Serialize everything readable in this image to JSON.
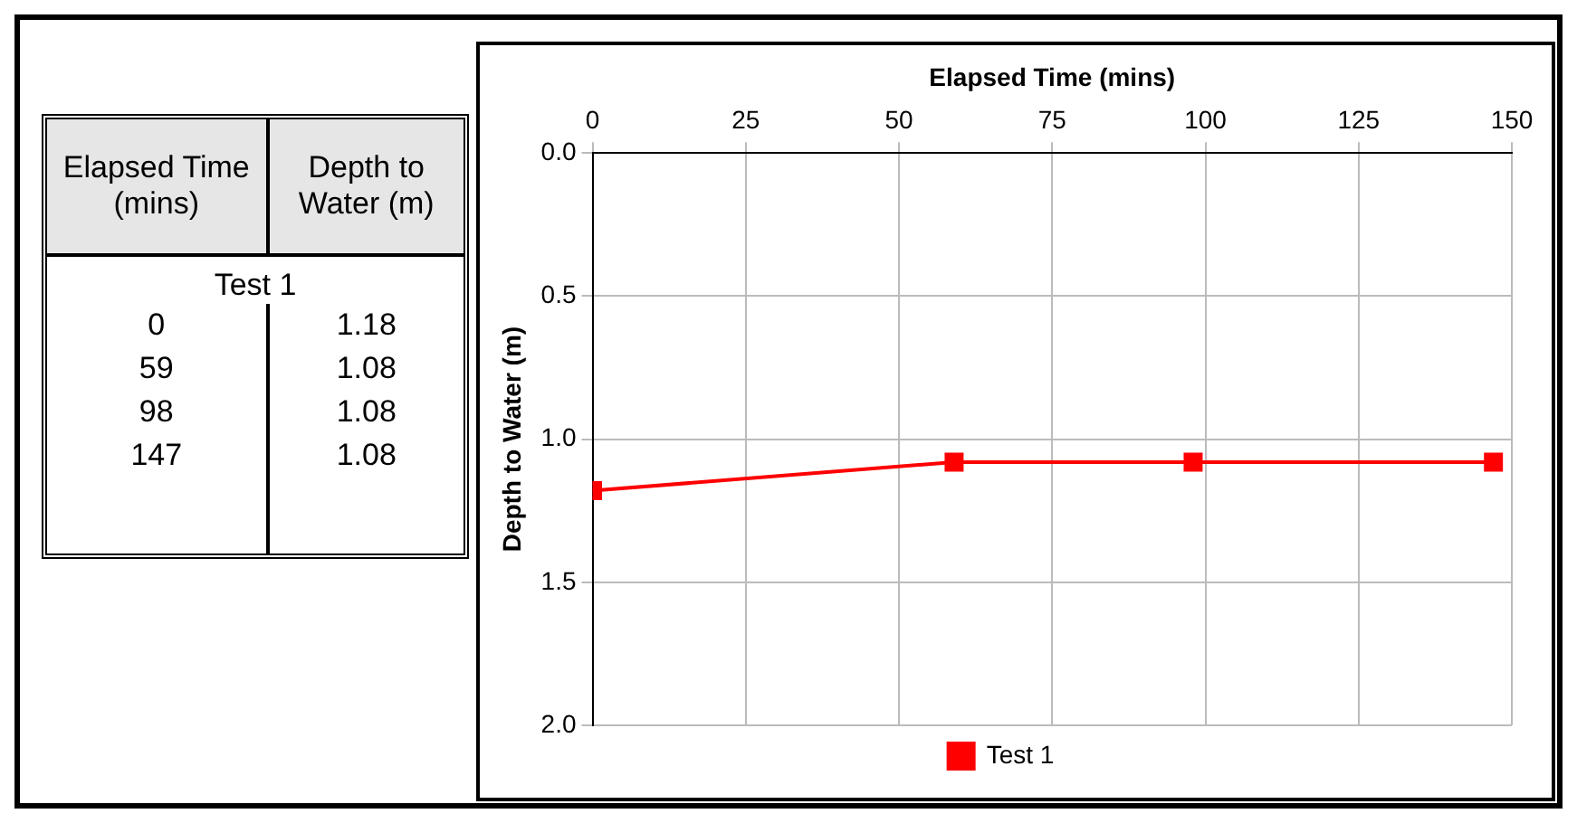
{
  "chart_data": [
    {
      "type": "other",
      "categories": [
        "Elapsed Time (mins)",
        "Depth to Water (m)"
      ],
      "subtitle": "Test 1",
      "cell_labels": [
        [
          "0",
          "1.18"
        ],
        [
          "59",
          "1.08"
        ],
        [
          "98",
          "1.08"
        ],
        [
          "147",
          "1.08"
        ]
      ]
    },
    {
      "type": "line",
      "xlabel": "Elapsed Time (mins)",
      "ylabel": "Depth to Water (m)",
      "x": [
        0,
        59,
        98,
        147
      ],
      "series": [
        {
          "name": "Test 1",
          "color": "#ff0000",
          "values": [
            1.18,
            1.08,
            1.08,
            1.08
          ]
        }
      ],
      "xlim": [
        0,
        150
      ],
      "xticks": [
        0,
        25,
        50,
        75,
        100,
        125,
        150
      ],
      "ylim": [
        2.0,
        0.0
      ],
      "yticks": [
        {
          "value": 0,
          "label": "0.0"
        },
        0.5,
        {
          "value": 1,
          "label": "1.0"
        },
        1.5,
        {
          "value": 2,
          "label": "2.0"
        }
      ],
      "grid": true,
      "legend": "bottom",
      "marker": "square",
      "line_style": "solid"
    }
  ]
}
